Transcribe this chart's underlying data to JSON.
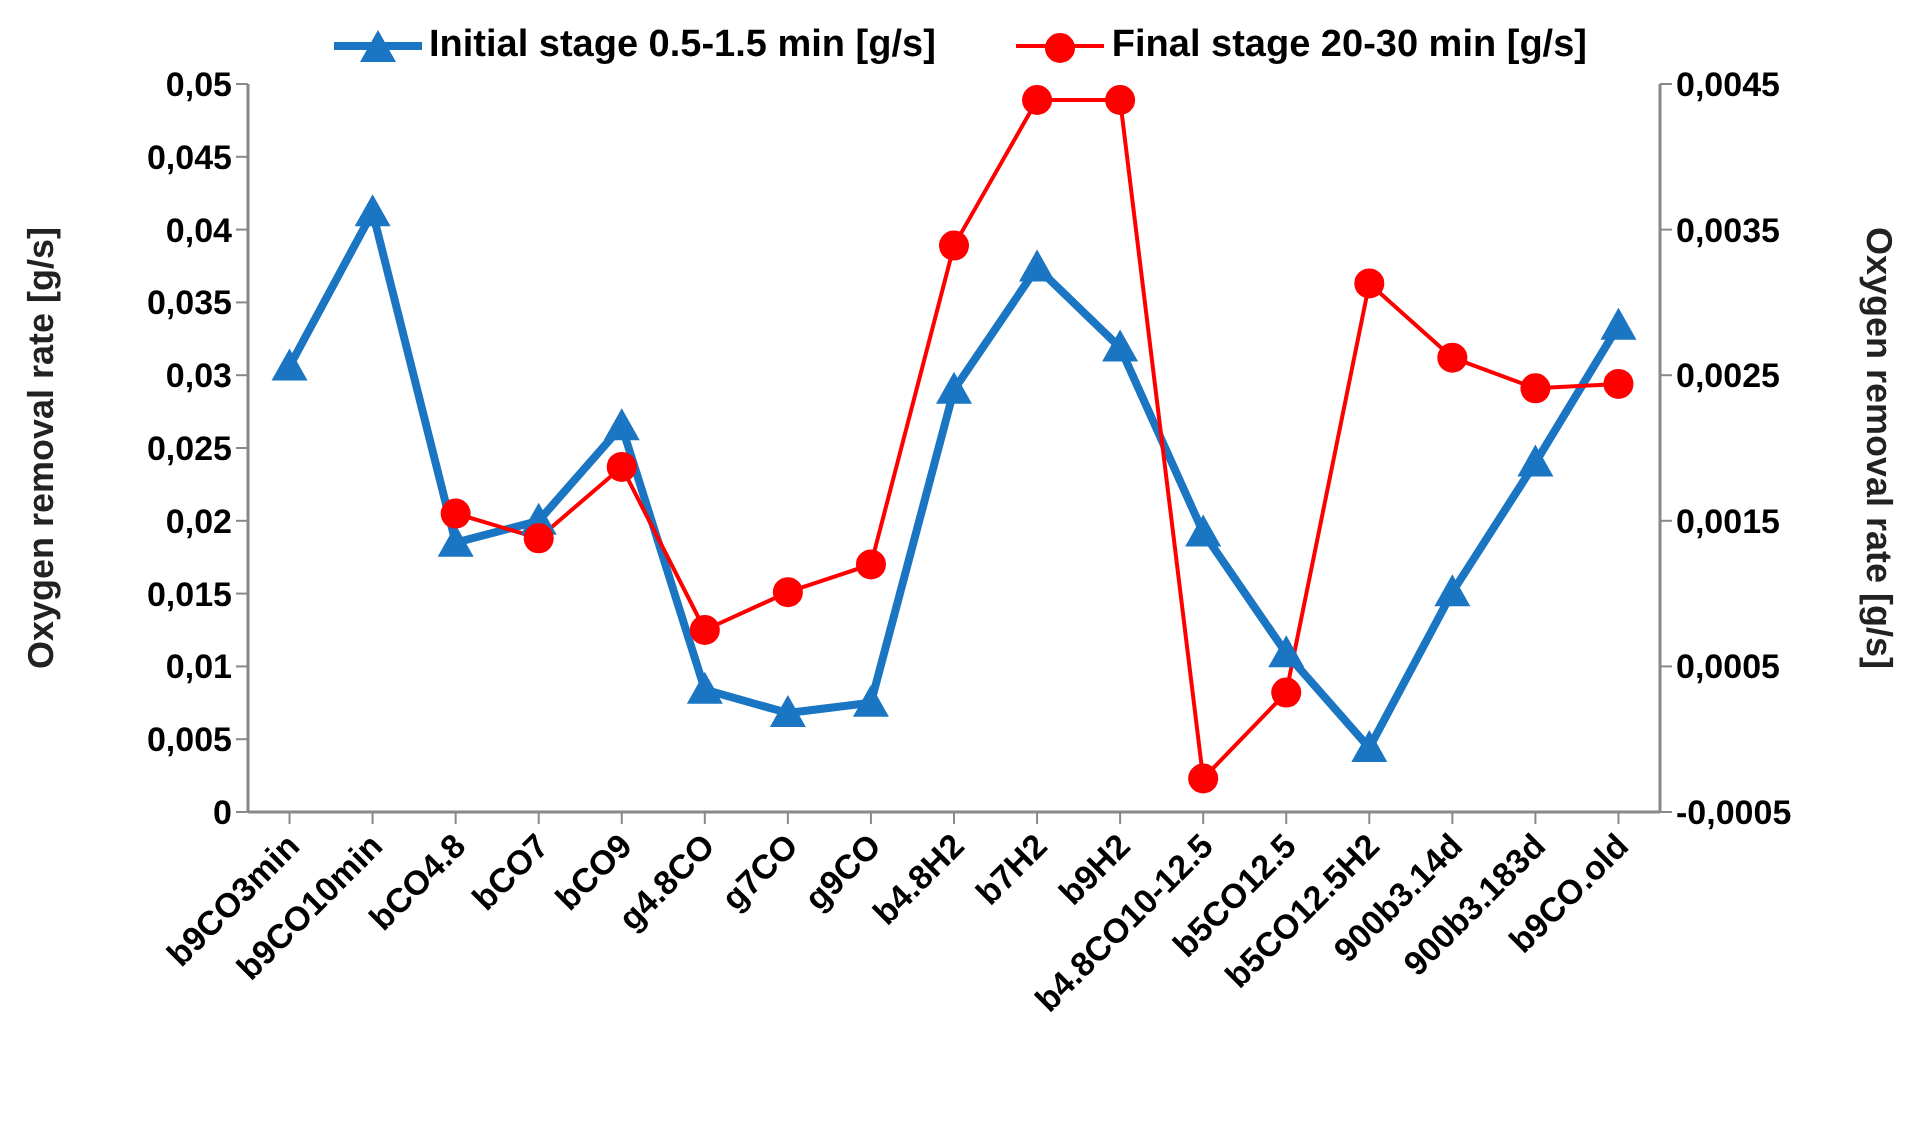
{
  "chart_data": {
    "type": "line",
    "categories": [
      "b9CO3min",
      "b9CO10min",
      "bCO4.8",
      "bCO7",
      "bCO9",
      "g4.8CO",
      "g7CO",
      "g9CO",
      "b4.8H2",
      "b7H2",
      "b9H2",
      "b4.8CO10-12.5",
      "b5CO12.5",
      "b5CO12.5H2",
      "900b3.14d",
      "900b3.183d",
      "b9CO.old"
    ],
    "series": [
      {
        "name": "Initial stage 0.5-1.5 min [g/s]",
        "color": "#1a75c2",
        "marker": "triangle",
        "values": [
          0.0306,
          0.0412,
          0.0185,
          0.02,
          0.0265,
          0.0084,
          0.0068,
          0.0075,
          0.029,
          0.0374,
          0.0319,
          0.0192,
          0.0109,
          0.0044,
          0.0151,
          0.024,
          0.0334
        ]
      },
      {
        "name": "Final stage 20-30 min [g/s]",
        "color": "#ff0000",
        "marker": "circle",
        "axis": "y2",
        "values": [
          null,
          null,
          0.00155,
          0.00138,
          0.00187,
          0.00075,
          0.00101,
          0.0012,
          0.00339,
          0.00439,
          0.00439,
          -0.00027,
          0.00032,
          0.00313,
          0.00262,
          0.00241,
          0.00244
        ]
      }
    ],
    "ylabel": "Oxygen removal rate [g/s]",
    "y2label": "Oxygen removal rate [g/s]",
    "ylim": [
      0,
      0.05
    ],
    "yticks": [
      {
        "value": 0,
        "label": "0"
      },
      {
        "value": 0.005,
        "label": "0,005"
      },
      {
        "value": 0.01,
        "label": "0,01"
      },
      {
        "value": 0.015,
        "label": "0,015"
      },
      {
        "value": 0.02,
        "label": "0,02"
      },
      {
        "value": 0.025,
        "label": "0,025"
      },
      {
        "value": 0.03,
        "label": "0,03"
      },
      {
        "value": 0.035,
        "label": "0,035"
      },
      {
        "value": 0.04,
        "label": "0,04"
      },
      {
        "value": 0.045,
        "label": "0,045"
      },
      {
        "value": 0.05,
        "label": "0,05"
      }
    ],
    "y2lim": [
      -0.0005,
      0.0045
    ],
    "y2ticks": [
      {
        "value": -0.0005,
        "label": "-0,0005"
      },
      {
        "value": 0.0005,
        "label": "0,0005"
      },
      {
        "value": 0.0015,
        "label": "0,0015"
      },
      {
        "value": 0.0025,
        "label": "0,0025"
      },
      {
        "value": 0.0035,
        "label": "0,0035"
      },
      {
        "value": 0.0045,
        "label": "0,0045"
      }
    ],
    "grid": false,
    "legend": "top",
    "line_style": "solid"
  }
}
